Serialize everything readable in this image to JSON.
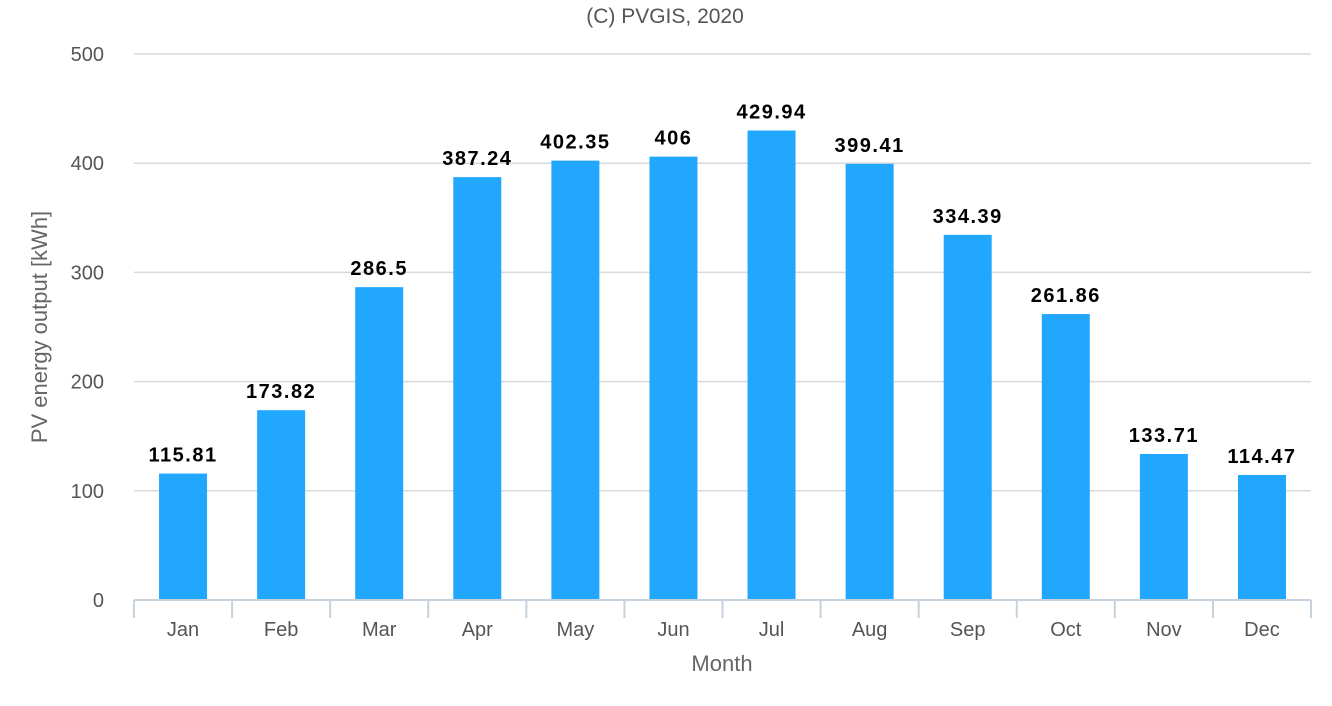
{
  "chart_data": {
    "type": "bar",
    "title": "(C) PVGIS, 2020",
    "xlabel": "Month",
    "ylabel": "PV energy output [kWh]",
    "categories": [
      "Jan",
      "Feb",
      "Mar",
      "Apr",
      "May",
      "Jun",
      "Jul",
      "Aug",
      "Sep",
      "Oct",
      "Nov",
      "Dec"
    ],
    "values": [
      115.81,
      173.82,
      286.5,
      387.24,
      402.35,
      406,
      429.94,
      399.41,
      334.39,
      261.86,
      133.71,
      114.47
    ],
    "value_labels": [
      "115.81",
      "173.82",
      "286.5",
      "387.24",
      "402.35",
      "406",
      "429.94",
      "399.41",
      "334.39",
      "261.86",
      "133.71",
      "114.47"
    ],
    "ylim": [
      0,
      500
    ],
    "yticks": [
      0,
      100,
      200,
      300,
      400,
      500
    ],
    "grid": true,
    "legend": "none",
    "bar_color": "#22a7ff"
  }
}
